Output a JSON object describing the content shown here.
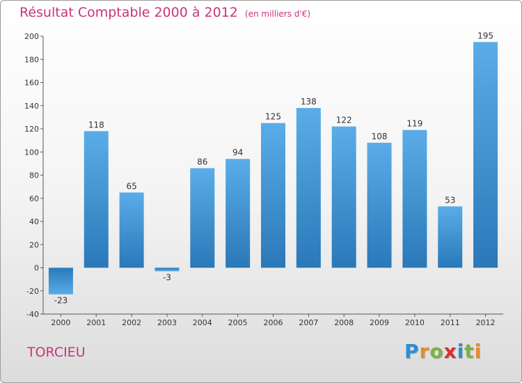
{
  "header": {
    "title": "Résultat Comptable 2000 à 2012",
    "unit": "(en milliers d'€)"
  },
  "footer": {
    "commune": "TORCIEU",
    "logo_letters": [
      {
        "ch": "P",
        "color": "#2a8fd6"
      },
      {
        "ch": "r",
        "color": "#e98a2a"
      },
      {
        "ch": "o",
        "color": "#7cb342"
      },
      {
        "ch": "x",
        "color": "#d7302b"
      },
      {
        "ch": "i",
        "color": "#2a8fd6"
      },
      {
        "ch": "t",
        "color": "#7cb342"
      },
      {
        "ch": "i",
        "color": "#e98a2a"
      }
    ]
  },
  "colors": {
    "bar_light": "#5aade8",
    "bar_dark": "#2a78b8",
    "title": "#c8347a"
  },
  "chart_data": {
    "type": "bar",
    "title": "Résultat Comptable 2000 à 2012",
    "xlabel": "",
    "ylabel": "",
    "ylim": [
      -40,
      200
    ],
    "yticks": [
      -40,
      -20,
      0,
      20,
      40,
      60,
      80,
      100,
      120,
      140,
      160,
      180,
      200
    ],
    "grid": false,
    "categories": [
      "2000",
      "2001",
      "2002",
      "2003",
      "2004",
      "2005",
      "2006",
      "2007",
      "2008",
      "2009",
      "2010",
      "2011",
      "2012"
    ],
    "values": [
      -23,
      118,
      65,
      -3,
      86,
      94,
      125,
      138,
      122,
      108,
      119,
      53,
      195
    ]
  }
}
